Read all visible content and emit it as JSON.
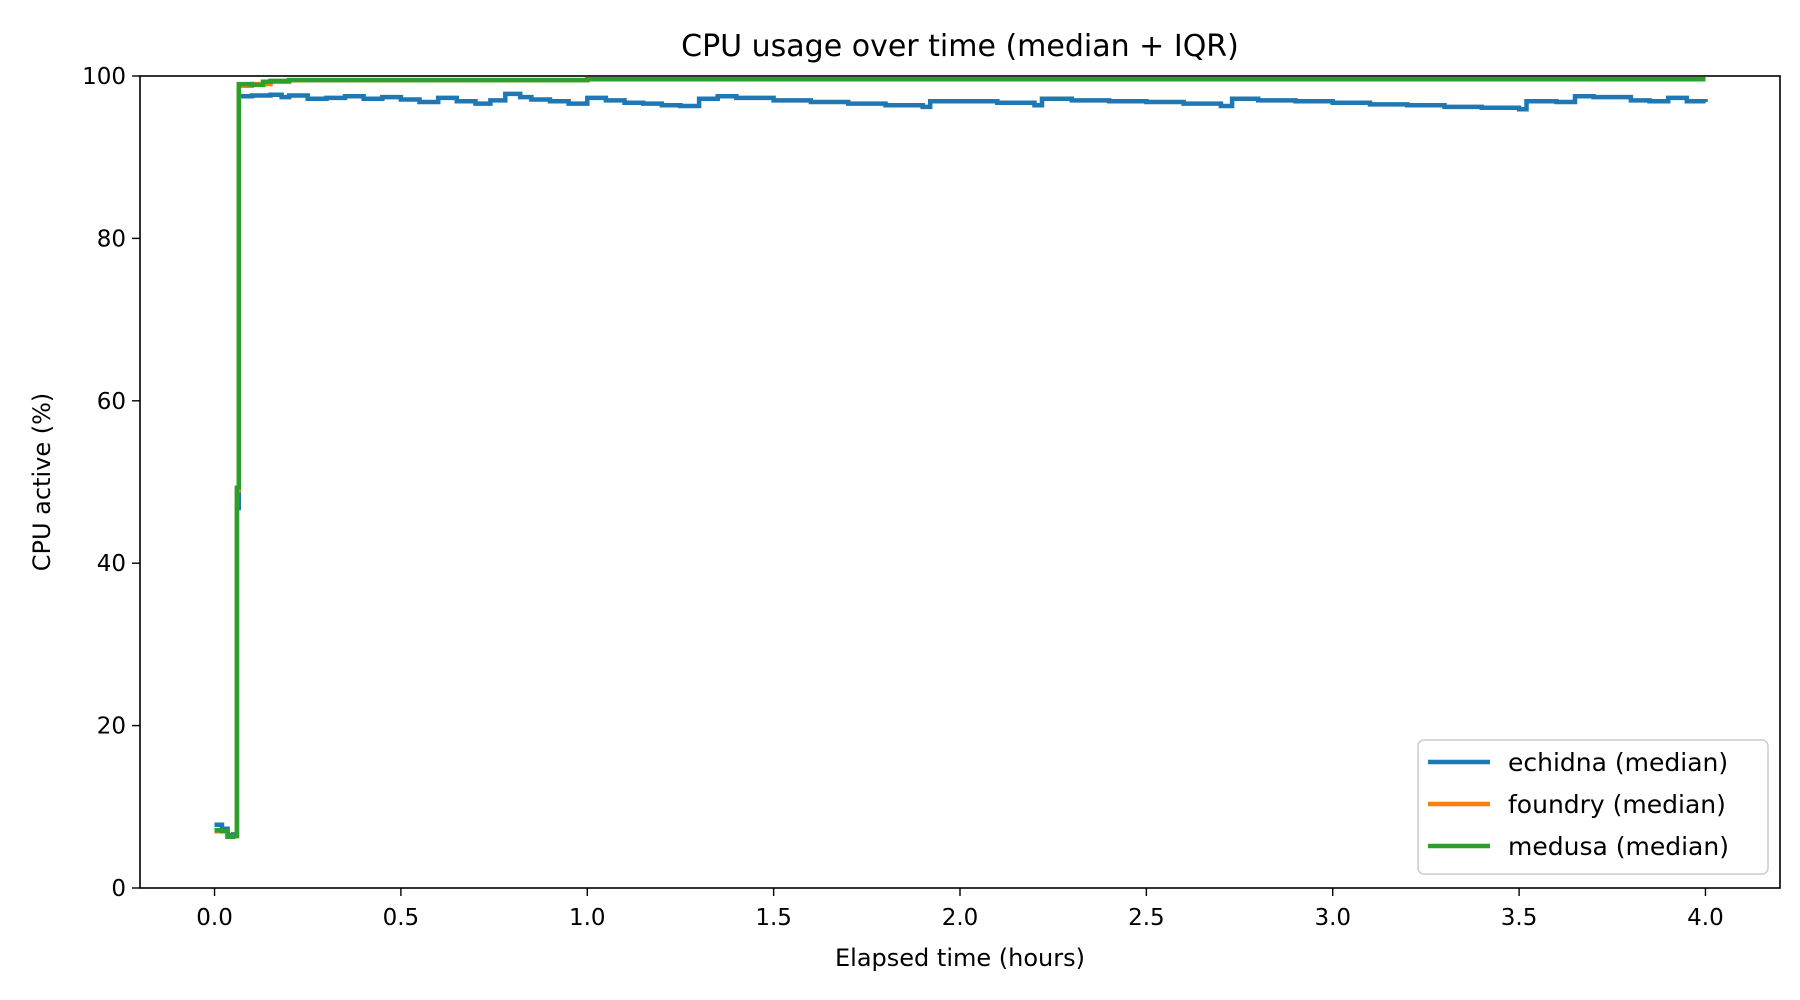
{
  "chart_data": {
    "type": "line",
    "title": "CPU usage over time (median + IQR)",
    "xlabel": "Elapsed time (hours)",
    "ylabel": "CPU active (%)",
    "xlim": [
      -0.2,
      4.2
    ],
    "ylim": [
      0,
      100
    ],
    "xticks": [
      0.0,
      0.5,
      1.0,
      1.5,
      2.0,
      2.5,
      3.0,
      3.5,
      4.0
    ],
    "xtick_labels": [
      "0.0",
      "0.5",
      "1.0",
      "1.5",
      "2.0",
      "2.5",
      "3.0",
      "3.5",
      "4.0"
    ],
    "yticks": [
      0,
      20,
      40,
      60,
      80,
      100
    ],
    "ytick_labels": [
      "0",
      "20",
      "40",
      "60",
      "80",
      "100"
    ],
    "grid": false,
    "legend_position": "lower-right",
    "series": [
      {
        "name": "echidna (median)",
        "color": "#1f77b4",
        "x": [
          0.0,
          0.02,
          0.035,
          0.05,
          0.06,
          0.065,
          0.075,
          0.1,
          0.15,
          0.18,
          0.2,
          0.25,
          0.3,
          0.35,
          0.4,
          0.45,
          0.5,
          0.55,
          0.6,
          0.65,
          0.7,
          0.74,
          0.78,
          0.82,
          0.85,
          0.9,
          0.95,
          1.0,
          1.05,
          1.1,
          1.15,
          1.2,
          1.25,
          1.3,
          1.35,
          1.4,
          1.5,
          1.6,
          1.7,
          1.8,
          1.9,
          1.92,
          2.0,
          2.1,
          2.2,
          2.22,
          2.3,
          2.4,
          2.5,
          2.6,
          2.7,
          2.73,
          2.8,
          2.9,
          3.0,
          3.1,
          3.2,
          3.3,
          3.4,
          3.5,
          3.52,
          3.6,
          3.65,
          3.7,
          3.8,
          3.85,
          3.9,
          3.95,
          4.0
        ],
        "y": [
          7.8,
          7.3,
          6.5,
          6.6,
          46.8,
          97.5,
          97.5,
          97.6,
          97.7,
          97.4,
          97.6,
          97.2,
          97.3,
          97.5,
          97.2,
          97.4,
          97.1,
          96.8,
          97.3,
          96.9,
          96.6,
          97.0,
          97.8,
          97.4,
          97.1,
          96.9,
          96.6,
          97.3,
          97.0,
          96.7,
          96.6,
          96.4,
          96.3,
          97.2,
          97.5,
          97.3,
          97.0,
          96.8,
          96.6,
          96.4,
          96.2,
          96.9,
          96.9,
          96.7,
          96.4,
          97.2,
          97.0,
          96.9,
          96.8,
          96.6,
          96.3,
          97.2,
          97.0,
          96.9,
          96.7,
          96.5,
          96.4,
          96.2,
          96.1,
          95.9,
          96.9,
          96.8,
          97.5,
          97.4,
          97.0,
          96.9,
          97.3,
          96.9,
          96.8
        ]
      },
      {
        "name": "foundry (median)",
        "color": "#ff7f0e",
        "x": [
          0.0,
          0.02,
          0.035,
          0.05,
          0.06,
          0.065,
          0.1,
          0.15,
          0.2,
          0.5,
          1.0,
          1.5,
          2.0,
          2.5,
          3.0,
          3.5,
          4.0
        ],
        "y": [
          7.0,
          7.0,
          6.3,
          6.4,
          49.0,
          98.8,
          99.0,
          99.3,
          99.5,
          99.5,
          99.6,
          99.6,
          99.6,
          99.6,
          99.6,
          99.6,
          99.6
        ]
      },
      {
        "name": "medusa (median)",
        "color": "#2ca02c",
        "x": [
          0.0,
          0.02,
          0.035,
          0.05,
          0.06,
          0.065,
          0.1,
          0.13,
          0.15,
          0.2,
          0.5,
          1.0,
          1.5,
          2.0,
          2.5,
          3.0,
          3.5,
          4.0
        ],
        "y": [
          7.1,
          7.0,
          6.3,
          6.4,
          49.3,
          99.0,
          98.9,
          99.3,
          99.4,
          99.5,
          99.5,
          99.6,
          99.6,
          99.6,
          99.6,
          99.6,
          99.6,
          99.6
        ]
      }
    ]
  }
}
